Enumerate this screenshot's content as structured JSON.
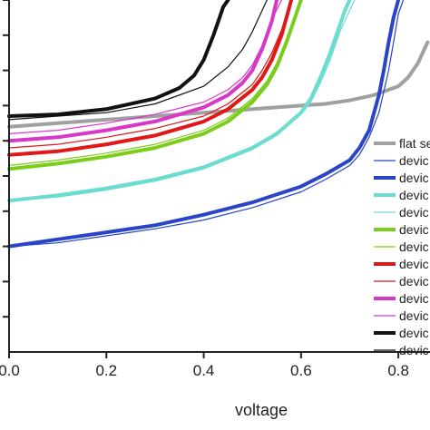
{
  "chart_data": {
    "type": "line",
    "xlabel": "voltage",
    "ylabel": "",
    "x_tick_labels": [
      "0.0",
      "0.2",
      "0.4",
      "0.6",
      "0.8"
    ],
    "x_ticks": [
      0.0,
      0.2,
      0.4,
      0.6,
      0.8
    ],
    "xlim": [
      0.0,
      0.865
    ],
    "ylim": [
      -1.0,
      0.0
    ],
    "y_tick_values": [
      0.0,
      -0.1,
      -0.2,
      -0.3,
      -0.4,
      -0.5,
      -0.6,
      -0.7,
      -0.8,
      -0.9
    ],
    "grid": false,
    "legend_position": "right",
    "series": [
      {
        "name": "flat se",
        "color": "#a0a0a0",
        "width": 4,
        "x": [
          0.0,
          0.1,
          0.2,
          0.3,
          0.4,
          0.5,
          0.6,
          0.65,
          0.7,
          0.75,
          0.8,
          0.82,
          0.84,
          0.86
        ],
        "y": [
          -0.36,
          -0.35,
          -0.34,
          -0.33,
          -0.32,
          -0.31,
          -0.3,
          -0.295,
          -0.285,
          -0.27,
          -0.245,
          -0.22,
          -0.18,
          -0.12
        ]
      },
      {
        "name": "devic",
        "color": "#2a44c8",
        "width": 1.2,
        "x": [
          0.0,
          0.1,
          0.2,
          0.3,
          0.4,
          0.5,
          0.6,
          0.65,
          0.7,
          0.72,
          0.74,
          0.76,
          0.78,
          0.79,
          0.8,
          0.81
        ],
        "y": [
          -0.7,
          -0.69,
          -0.67,
          -0.65,
          -0.625,
          -0.59,
          -0.545,
          -0.51,
          -0.47,
          -0.44,
          -0.39,
          -0.32,
          -0.2,
          -0.12,
          -0.04,
          0.0
        ]
      },
      {
        "name": "devic",
        "color": "#2a44c8",
        "width": 4,
        "x": [
          0.0,
          0.1,
          0.2,
          0.3,
          0.4,
          0.5,
          0.6,
          0.65,
          0.7,
          0.72,
          0.74,
          0.76,
          0.77,
          0.78,
          0.79,
          0.8
        ],
        "y": [
          -0.7,
          -0.68,
          -0.66,
          -0.64,
          -0.61,
          -0.575,
          -0.53,
          -0.495,
          -0.455,
          -0.42,
          -0.37,
          -0.27,
          -0.2,
          -0.12,
          -0.05,
          0.0
        ]
      },
      {
        "name": "devic",
        "color": "#6cdcd0",
        "width": 4,
        "x": [
          0.0,
          0.1,
          0.2,
          0.3,
          0.4,
          0.5,
          0.55,
          0.6,
          0.62,
          0.64,
          0.66,
          0.68,
          0.69,
          0.7
        ],
        "y": [
          -0.57,
          -0.555,
          -0.535,
          -0.51,
          -0.475,
          -0.42,
          -0.38,
          -0.32,
          -0.28,
          -0.22,
          -0.15,
          -0.07,
          -0.03,
          0.0
        ]
      },
      {
        "name": "devic",
        "color": "#6cdcd0",
        "width": 1.2,
        "x": [
          0.0,
          0.1,
          0.2,
          0.3,
          0.4,
          0.5,
          0.55,
          0.6,
          0.62,
          0.64,
          0.66,
          0.68,
          0.7,
          0.71
        ],
        "y": [
          -0.57,
          -0.56,
          -0.54,
          -0.515,
          -0.48,
          -0.425,
          -0.385,
          -0.325,
          -0.29,
          -0.235,
          -0.17,
          -0.09,
          -0.03,
          0.0
        ]
      },
      {
        "name": "devic",
        "color": "#7ccc1c",
        "width": 4,
        "x": [
          0.0,
          0.1,
          0.2,
          0.3,
          0.4,
          0.45,
          0.5,
          0.53,
          0.55,
          0.57,
          0.59,
          0.6
        ],
        "y": [
          -0.48,
          -0.465,
          -0.445,
          -0.42,
          -0.38,
          -0.345,
          -0.29,
          -0.24,
          -0.19,
          -0.12,
          -0.04,
          0.0
        ]
      },
      {
        "name": "devic",
        "color": "#7ccc1c",
        "width": 1.2,
        "x": [
          0.0,
          0.1,
          0.2,
          0.3,
          0.4,
          0.45,
          0.5,
          0.53,
          0.55,
          0.57,
          0.59,
          0.6
        ],
        "y": [
          -0.47,
          -0.455,
          -0.435,
          -0.41,
          -0.37,
          -0.335,
          -0.28,
          -0.23,
          -0.18,
          -0.11,
          -0.035,
          0.0
        ]
      },
      {
        "name": "devic",
        "color": "#e01818",
        "width": 4,
        "x": [
          0.0,
          0.1,
          0.2,
          0.3,
          0.4,
          0.45,
          0.5,
          0.52,
          0.54,
          0.56,
          0.57,
          0.58
        ],
        "y": [
          -0.44,
          -0.43,
          -0.41,
          -0.385,
          -0.345,
          -0.31,
          -0.255,
          -0.22,
          -0.17,
          -0.1,
          -0.05,
          0.0
        ]
      },
      {
        "name": "devic",
        "color": "#e01818",
        "width": 1.2,
        "x": [
          0.0,
          0.1,
          0.2,
          0.3,
          0.4,
          0.45,
          0.5,
          0.52,
          0.54,
          0.56,
          0.57,
          0.58
        ],
        "y": [
          -0.42,
          -0.41,
          -0.39,
          -0.365,
          -0.33,
          -0.295,
          -0.24,
          -0.2,
          -0.15,
          -0.085,
          -0.04,
          0.0
        ]
      },
      {
        "name": "devic",
        "color": "#d838c8",
        "width": 4,
        "x": [
          0.0,
          0.1,
          0.2,
          0.3,
          0.4,
          0.45,
          0.48,
          0.5,
          0.52,
          0.54,
          0.55
        ],
        "y": [
          -0.4,
          -0.39,
          -0.37,
          -0.345,
          -0.305,
          -0.27,
          -0.235,
          -0.2,
          -0.14,
          -0.06,
          0.0
        ]
      },
      {
        "name": "devic",
        "color": "#d838c8",
        "width": 1.2,
        "x": [
          0.0,
          0.1,
          0.2,
          0.3,
          0.4,
          0.45,
          0.48,
          0.5,
          0.52,
          0.54,
          0.56
        ],
        "y": [
          -0.38,
          -0.37,
          -0.35,
          -0.325,
          -0.29,
          -0.255,
          -0.22,
          -0.185,
          -0.13,
          -0.055,
          0.0
        ]
      },
      {
        "name": "devic",
        "color": "#111111",
        "width": 4,
        "x": [
          0.0,
          0.1,
          0.2,
          0.3,
          0.35,
          0.38,
          0.4,
          0.42,
          0.43,
          0.44,
          0.45
        ],
        "y": [
          -0.33,
          -0.325,
          -0.31,
          -0.28,
          -0.25,
          -0.215,
          -0.17,
          -0.1,
          -0.06,
          -0.02,
          0.0
        ]
      },
      {
        "name": "devic",
        "color": "#111111",
        "width": 1.2,
        "x": [
          0.0,
          0.1,
          0.2,
          0.3,
          0.4,
          0.45,
          0.48,
          0.5,
          0.52,
          0.53
        ],
        "y": [
          -0.34,
          -0.33,
          -0.32,
          -0.295,
          -0.245,
          -0.19,
          -0.14,
          -0.09,
          -0.03,
          0.0
        ]
      }
    ]
  }
}
